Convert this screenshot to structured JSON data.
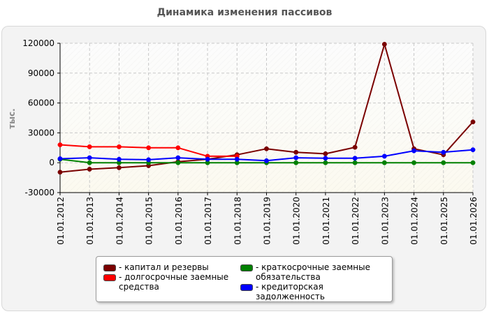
{
  "chart_data": {
    "type": "line",
    "title": "Динамика изменения пассивов",
    "ylabel": "тыс.",
    "xlabel": "",
    "ylim": [
      -30000,
      120000
    ],
    "yticks": [
      120000,
      90000,
      60000,
      30000,
      0,
      -30000
    ],
    "grid": true,
    "legend_position": "bottom",
    "categories": [
      "01.01.2012",
      "01.01.2013",
      "01.01.2014",
      "01.01.2015",
      "01.01.2016",
      "01.01.2017",
      "01.01.2018",
      "01.01.2019",
      "01.01.2020",
      "01.01.2021",
      "01.01.2022",
      "01.01.2023",
      "01.01.2024",
      "01.01.2025",
      "01.01.2026"
    ],
    "series": [
      {
        "name": "капитал и резервы",
        "color": "#7a0000",
        "values": [
          -9500,
          -6500,
          -5000,
          -3000,
          1000,
          3500,
          8000,
          14000,
          10500,
          9000,
          15500,
          119000,
          14000,
          8000,
          41000
        ]
      },
      {
        "name": "долгосрочные заемные средства",
        "color": "#ff0000",
        "values": [
          18000,
          16000,
          16000,
          15000,
          15000,
          6500,
          6500,
          null,
          null,
          null,
          null,
          null,
          null,
          null,
          null
        ]
      },
      {
        "name": "краткосрочные заемные обязательства",
        "color": "#008000",
        "values": [
          3500,
          0,
          0,
          0,
          0,
          0,
          0,
          0,
          0,
          0,
          0,
          0,
          0,
          0,
          0
        ]
      },
      {
        "name": "кредиторская задолженность",
        "color": "#0000ff",
        "values": [
          4000,
          5000,
          3500,
          3000,
          5000,
          3500,
          3500,
          2000,
          5000,
          4500,
          4500,
          6500,
          12000,
          10500,
          13000
        ]
      }
    ]
  }
}
